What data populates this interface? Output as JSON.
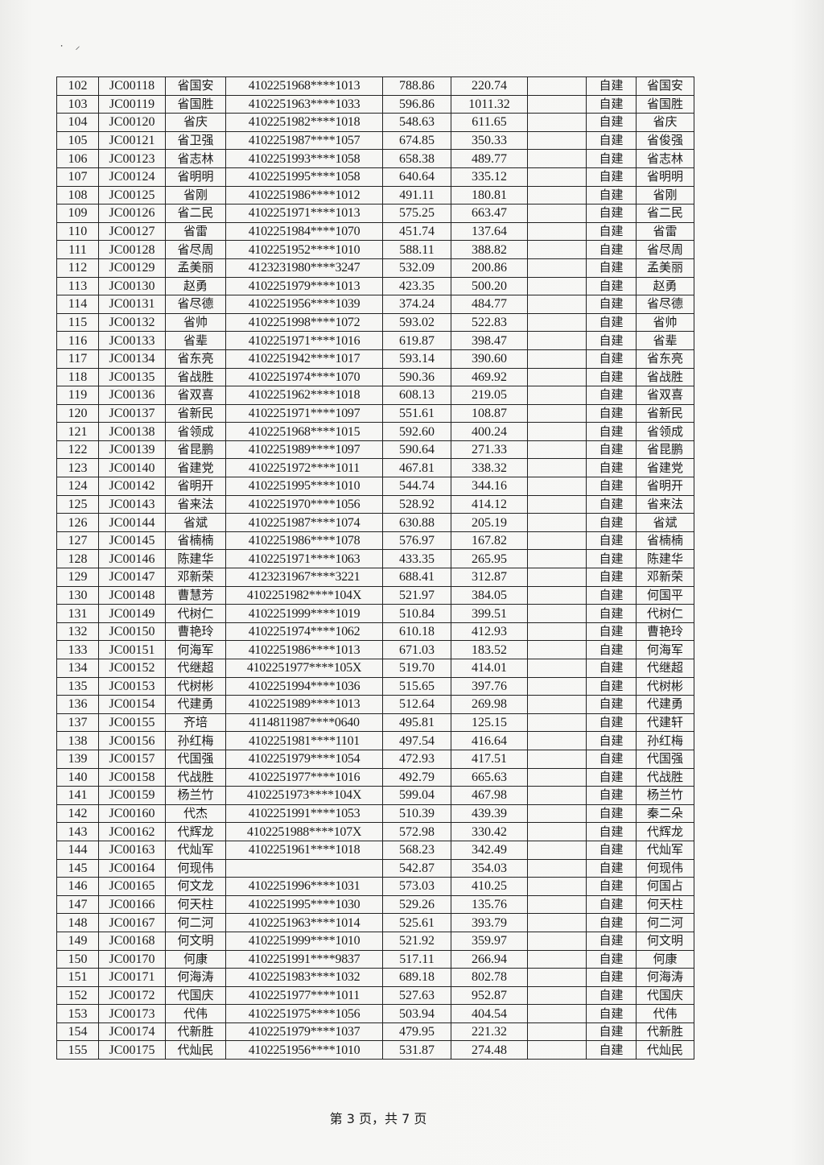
{
  "rows": [
    [
      "102",
      "JC00118",
      "省国安",
      "4102251968****1013",
      "788.86",
      "220.74",
      "",
      "自建",
      "省国安"
    ],
    [
      "103",
      "JC00119",
      "省国胜",
      "4102251963****1033",
      "596.86",
      "1011.32",
      "",
      "自建",
      "省国胜"
    ],
    [
      "104",
      "JC00120",
      "省庆",
      "4102251982****1018",
      "548.63",
      "611.65",
      "",
      "自建",
      "省庆"
    ],
    [
      "105",
      "JC00121",
      "省卫强",
      "4102251987****1057",
      "674.85",
      "350.33",
      "",
      "自建",
      "省俊强"
    ],
    [
      "106",
      "JC00123",
      "省志林",
      "4102251993****1058",
      "658.38",
      "489.77",
      "",
      "自建",
      "省志林"
    ],
    [
      "107",
      "JC00124",
      "省明明",
      "4102251995****1058",
      "640.64",
      "335.12",
      "",
      "自建",
      "省明明"
    ],
    [
      "108",
      "JC00125",
      "省刚",
      "4102251986****1012",
      "491.11",
      "180.81",
      "",
      "自建",
      "省刚"
    ],
    [
      "109",
      "JC00126",
      "省二民",
      "4102251971****1013",
      "575.25",
      "663.47",
      "",
      "自建",
      "省二民"
    ],
    [
      "110",
      "JC00127",
      "省雷",
      "4102251984****1070",
      "451.74",
      "137.64",
      "",
      "自建",
      "省雷"
    ],
    [
      "111",
      "JC00128",
      "省尽周",
      "4102251952****1010",
      "588.11",
      "388.82",
      "",
      "自建",
      "省尽周"
    ],
    [
      "112",
      "JC00129",
      "孟美丽",
      "4123231980****3247",
      "532.09",
      "200.86",
      "",
      "自建",
      "孟美丽"
    ],
    [
      "113",
      "JC00130",
      "赵勇",
      "4102251979****1013",
      "423.35",
      "500.20",
      "",
      "自建",
      "赵勇"
    ],
    [
      "114",
      "JC00131",
      "省尽德",
      "4102251956****1039",
      "374.24",
      "484.77",
      "",
      "自建",
      "省尽德"
    ],
    [
      "115",
      "JC00132",
      "省帅",
      "4102251998****1072",
      "593.02",
      "522.83",
      "",
      "自建",
      "省帅"
    ],
    [
      "116",
      "JC00133",
      "省辈",
      "4102251971****1016",
      "619.87",
      "398.47",
      "",
      "自建",
      "省辈"
    ],
    [
      "117",
      "JC00134",
      "省东亮",
      "4102251942****1017",
      "593.14",
      "390.60",
      "",
      "自建",
      "省东亮"
    ],
    [
      "118",
      "JC00135",
      "省战胜",
      "4102251974****1070",
      "590.36",
      "469.92",
      "",
      "自建",
      "省战胜"
    ],
    [
      "119",
      "JC00136",
      "省双喜",
      "4102251962****1018",
      "608.13",
      "219.05",
      "",
      "自建",
      "省双喜"
    ],
    [
      "120",
      "JC00137",
      "省新民",
      "4102251971****1097",
      "551.61",
      "108.87",
      "",
      "自建",
      "省新民"
    ],
    [
      "121",
      "JC00138",
      "省领成",
      "4102251968****1015",
      "592.60",
      "400.24",
      "",
      "自建",
      "省领成"
    ],
    [
      "122",
      "JC00139",
      "省昆鹏",
      "4102251989****1097",
      "590.64",
      "271.33",
      "",
      "自建",
      "省昆鹏"
    ],
    [
      "123",
      "JC00140",
      "省建党",
      "4102251972****1011",
      "467.81",
      "338.32",
      "",
      "自建",
      "省建党"
    ],
    [
      "124",
      "JC00142",
      "省明开",
      "4102251995****1010",
      "544.74",
      "344.16",
      "",
      "自建",
      "省明开"
    ],
    [
      "125",
      "JC00143",
      "省来法",
      "4102251970****1056",
      "528.92",
      "414.12",
      "",
      "自建",
      "省来法"
    ],
    [
      "126",
      "JC00144",
      "省斌",
      "4102251987****1074",
      "630.88",
      "205.19",
      "",
      "自建",
      "省斌"
    ],
    [
      "127",
      "JC00145",
      "省楠楠",
      "4102251986****1078",
      "576.97",
      "167.82",
      "",
      "自建",
      "省楠楠"
    ],
    [
      "128",
      "JC00146",
      "陈建华",
      "4102251971****1063",
      "433.35",
      "265.95",
      "",
      "自建",
      "陈建华"
    ],
    [
      "129",
      "JC00147",
      "邓新荣",
      "4123231967****3221",
      "688.41",
      "312.87",
      "",
      "自建",
      "邓新荣"
    ],
    [
      "130",
      "JC00148",
      "曹慧芳",
      "4102251982****104X",
      "521.97",
      "384.05",
      "",
      "自建",
      "何国平"
    ],
    [
      "131",
      "JC00149",
      "代树仁",
      "4102251999****1019",
      "510.84",
      "399.51",
      "",
      "自建",
      "代树仁"
    ],
    [
      "132",
      "JC00150",
      "曹艳玲",
      "4102251974****1062",
      "610.18",
      "412.93",
      "",
      "自建",
      "曹艳玲"
    ],
    [
      "133",
      "JC00151",
      "何海军",
      "4102251986****1013",
      "671.03",
      "183.52",
      "",
      "自建",
      "何海军"
    ],
    [
      "134",
      "JC00152",
      "代继超",
      "4102251977****105X",
      "519.70",
      "414.01",
      "",
      "自建",
      "代继超"
    ],
    [
      "135",
      "JC00153",
      "代树彬",
      "4102251994****1036",
      "515.65",
      "397.76",
      "",
      "自建",
      "代树彬"
    ],
    [
      "136",
      "JC00154",
      "代建勇",
      "4102251989****1013",
      "512.64",
      "269.98",
      "",
      "自建",
      "代建勇"
    ],
    [
      "137",
      "JC00155",
      "齐培",
      "4114811987****0640",
      "495.81",
      "125.15",
      "",
      "自建",
      "代建轩"
    ],
    [
      "138",
      "JC00156",
      "孙红梅",
      "4102251981****1101",
      "497.54",
      "416.64",
      "",
      "自建",
      "孙红梅"
    ],
    [
      "139",
      "JC00157",
      "代国强",
      "4102251979****1054",
      "472.93",
      "417.51",
      "",
      "自建",
      "代国强"
    ],
    [
      "140",
      "JC00158",
      "代战胜",
      "4102251977****1016",
      "492.79",
      "665.63",
      "",
      "自建",
      "代战胜"
    ],
    [
      "141",
      "JC00159",
      "杨兰竹",
      "4102251973****104X",
      "599.04",
      "467.98",
      "",
      "自建",
      "杨兰竹"
    ],
    [
      "142",
      "JC00160",
      "代杰",
      "4102251991****1053",
      "510.39",
      "439.39",
      "",
      "自建",
      "秦二朵"
    ],
    [
      "143",
      "JC00162",
      "代辉龙",
      "4102251988****107X",
      "572.98",
      "330.42",
      "",
      "自建",
      "代辉龙"
    ],
    [
      "144",
      "JC00163",
      "代灿军",
      "4102251961****1018",
      "568.23",
      "342.49",
      "",
      "自建",
      "代灿军"
    ],
    [
      "145",
      "JC00164",
      "何现伟",
      "",
      "542.87",
      "354.03",
      "",
      "自建",
      "何现伟"
    ],
    [
      "146",
      "JC00165",
      "何文龙",
      "4102251996****1031",
      "573.03",
      "410.25",
      "",
      "自建",
      "何国占"
    ],
    [
      "147",
      "JC00166",
      "何天柱",
      "4102251995****1030",
      "529.26",
      "135.76",
      "",
      "自建",
      "何天柱"
    ],
    [
      "148",
      "JC00167",
      "何二河",
      "4102251963****1014",
      "525.61",
      "393.79",
      "",
      "自建",
      "何二河"
    ],
    [
      "149",
      "JC00168",
      "何文明",
      "4102251999****1010",
      "521.92",
      "359.97",
      "",
      "自建",
      "何文明"
    ],
    [
      "150",
      "JC00170",
      "何康",
      "4102251991****9837",
      "517.11",
      "266.94",
      "",
      "自建",
      "何康"
    ],
    [
      "151",
      "JC00171",
      "何海涛",
      "4102251983****1032",
      "689.18",
      "802.78",
      "",
      "自建",
      "何海涛"
    ],
    [
      "152",
      "JC00172",
      "代国庆",
      "4102251977****1011",
      "527.63",
      "952.87",
      "",
      "自建",
      "代国庆"
    ],
    [
      "153",
      "JC00173",
      "代伟",
      "4102251975****1056",
      "503.94",
      "404.54",
      "",
      "自建",
      "代伟"
    ],
    [
      "154",
      "JC00174",
      "代新胜",
      "4102251979****1037",
      "479.95",
      "221.32",
      "",
      "自建",
      "代新胜"
    ],
    [
      "155",
      "JC00175",
      "代灿民",
      "4102251956****1010",
      "531.87",
      "274.48",
      "",
      "自建",
      "代灿民"
    ]
  ],
  "footer": "第 3 页，共 7 页"
}
